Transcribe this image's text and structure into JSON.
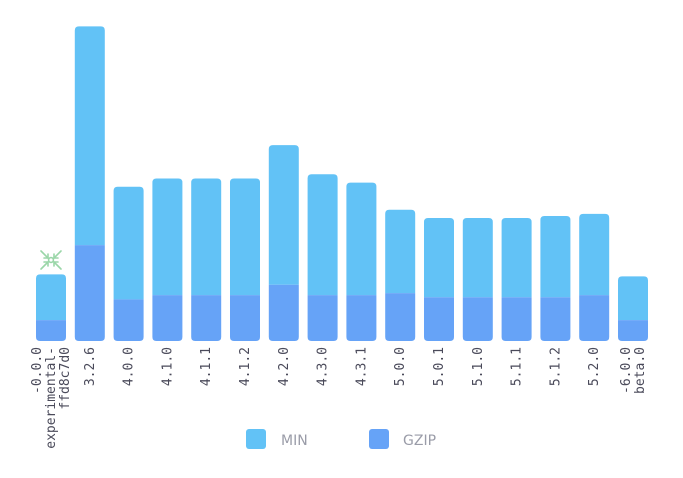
{
  "chart_data": {
    "type": "bar",
    "stacked": false,
    "grid": false,
    "legend_position": "bottom",
    "categories": [
      [
        "-0.0.0",
        "experimental-",
        "ffd8c7d0"
      ],
      [
        "3.2.6"
      ],
      [
        "4.0.0"
      ],
      [
        "4.1.0"
      ],
      [
        "4.1.1"
      ],
      [
        "4.1.2"
      ],
      [
        "4.2.0"
      ],
      [
        "4.3.0"
      ],
      [
        "4.3.1"
      ],
      [
        "5.0.0"
      ],
      [
        "5.0.1"
      ],
      [
        "5.1.0"
      ],
      [
        "5.1.1"
      ],
      [
        "5.1.2"
      ],
      [
        "5.2.0"
      ],
      [
        "-6.0.0",
        "beta.0"
      ]
    ],
    "series": [
      {
        "name": "MIN",
        "color": "#62c2f6",
        "values": [
          32,
          151,
          74,
          78,
          78,
          78,
          94,
          80,
          76,
          63,
          59,
          59,
          59,
          60,
          61,
          31
        ]
      },
      {
        "name": "GZIP",
        "color": "#66a3f7",
        "values": [
          10,
          46,
          20,
          22,
          22,
          22,
          27,
          22,
          22,
          23,
          21,
          21,
          21,
          21,
          22,
          10
        ]
      }
    ],
    "ylim": [
      0,
      155
    ]
  },
  "icons": {
    "first_bar_marker": "shrink-arrows-icon"
  }
}
